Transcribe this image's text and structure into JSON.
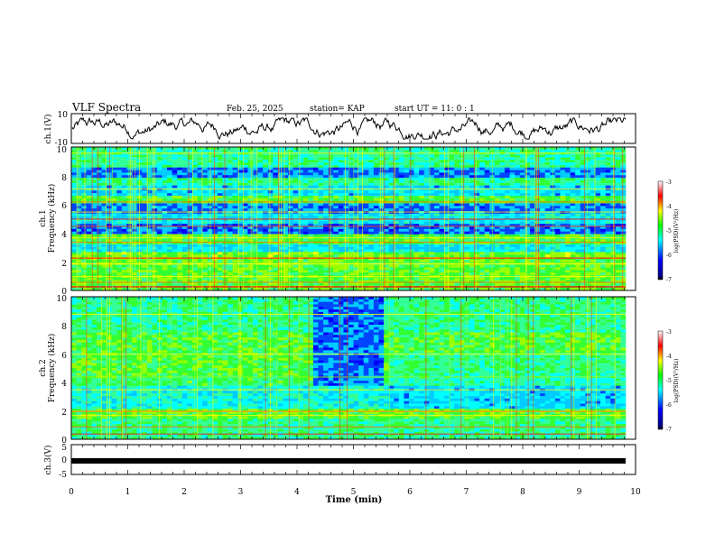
{
  "header": {
    "title": "VLF Spectra",
    "date": "Feb. 25, 2025",
    "station": "station= KAP",
    "start": "start  UT =   11: 0   : 1"
  },
  "chart_data": [
    {
      "name": "ch1-waveform",
      "type": "line",
      "ylabel": "ch.1(V)",
      "ylim": [
        -10,
        10
      ],
      "yticks": [
        "10",
        "-10"
      ],
      "xlim": [
        0,
        10
      ]
    },
    {
      "name": "ch1-spectrogram",
      "type": "heatmap",
      "ylabel_top": "ch.1",
      "ylabel": "Frequency (kHz)",
      "ylim": [
        0,
        10
      ],
      "yticks": [
        "0",
        "2",
        "4",
        "6",
        "8",
        "10"
      ],
      "xlim": [
        0,
        10
      ],
      "colorbar": {
        "label": "log(PSD)(V²/Hz)",
        "range": [
          -7,
          -3
        ],
        "ticks": [
          "-3",
          "-4",
          "-5",
          "-6",
          "-7"
        ]
      }
    },
    {
      "name": "ch2-spectrogram",
      "type": "heatmap",
      "ylabel_top": "ch.2",
      "ylabel": "Frequency (kHz)",
      "ylim": [
        0,
        10
      ],
      "yticks": [
        "0",
        "2",
        "4",
        "6",
        "8",
        "10"
      ],
      "xlim": [
        0,
        10
      ],
      "colorbar": {
        "label": "log(PSD)(V²/Hz)",
        "range": [
          -7,
          -3
        ],
        "ticks": [
          "-3",
          "-4",
          "-5",
          "-6",
          "-7"
        ]
      }
    },
    {
      "name": "ch3-waveform",
      "type": "line",
      "ylabel": "ch.3(V)",
      "ylim": [
        -5,
        5
      ],
      "yticks": [
        "5",
        "0",
        "-5"
      ],
      "xlim": [
        0,
        10
      ]
    }
  ],
  "xaxis": {
    "label": "Time  (min)",
    "ticks": [
      "0",
      "1",
      "2",
      "3",
      "4",
      "5",
      "6",
      "7",
      "8",
      "9",
      "10"
    ]
  },
  "colors": {
    "jet": [
      "#00008f",
      "#0000ff",
      "#00ffff",
      "#00ff00",
      "#ffff00",
      "#ff0000",
      "#ffffff"
    ]
  }
}
